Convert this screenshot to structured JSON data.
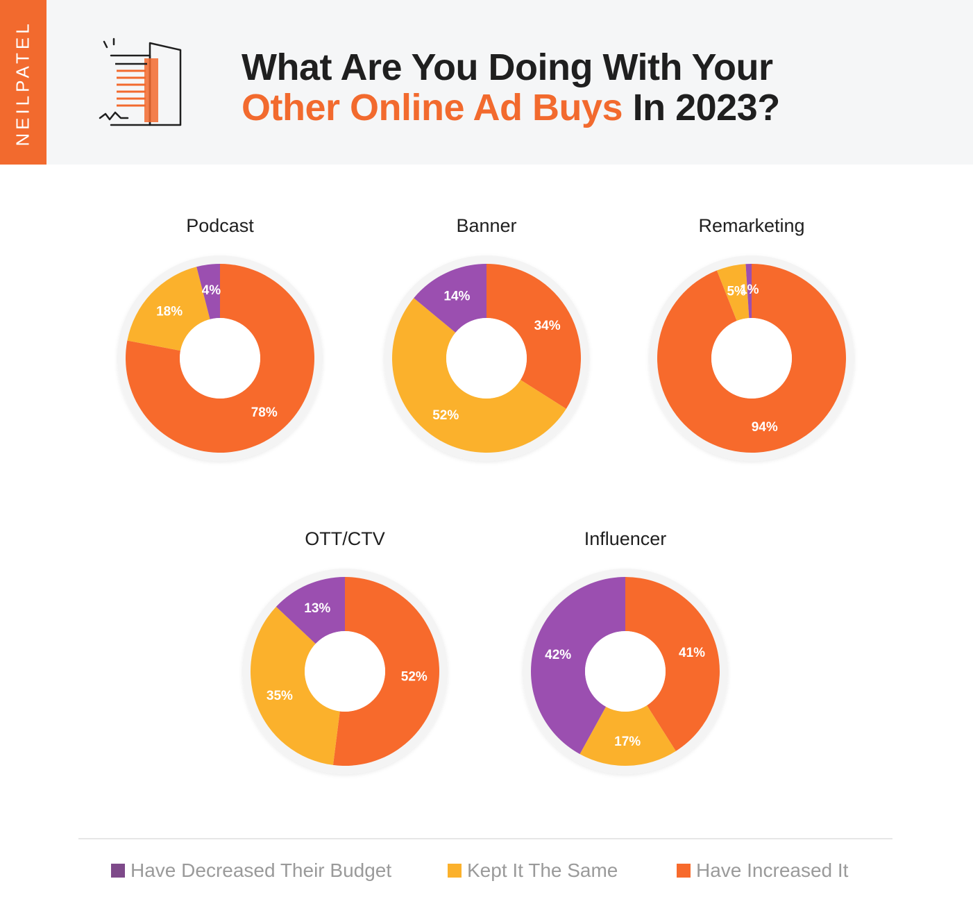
{
  "brand": "NEILPATEL",
  "title": {
    "line1": "What Are You Doing With Your",
    "line2_accent": "Other Online Ad Buys",
    "line2_rest": "In 2023?"
  },
  "colors": {
    "decreased": "#9b4fb0",
    "same": "#fbb12c",
    "increased": "#f76a2c",
    "brand": "#f26a2e"
  },
  "legend": [
    {
      "key": "decreased",
      "label": "Have Decreased Their Budget"
    },
    {
      "key": "same",
      "label": "Kept It The Same"
    },
    {
      "key": "increased",
      "label": "Have Increased It"
    }
  ],
  "chart_data": [
    {
      "type": "pie",
      "title": "Podcast",
      "categories": [
        "Have Increased It",
        "Kept It The Same",
        "Have Decreased Their Budget"
      ],
      "values": [
        78,
        18,
        4
      ],
      "labels": [
        "78%",
        "18%",
        "4%"
      ]
    },
    {
      "type": "pie",
      "title": "Banner",
      "categories": [
        "Have Increased It",
        "Kept It The Same",
        "Have Decreased Their Budget"
      ],
      "values": [
        34,
        52,
        14
      ],
      "labels": [
        "34%",
        "52%",
        "14%"
      ]
    },
    {
      "type": "pie",
      "title": "Remarketing",
      "categories": [
        "Have Increased It",
        "Kept It The Same",
        "Have Decreased Their Budget"
      ],
      "values": [
        94,
        5,
        1
      ],
      "labels": [
        "94%",
        "5%",
        "1%"
      ]
    },
    {
      "type": "pie",
      "title": "OTT/CTV",
      "categories": [
        "Have Increased It",
        "Kept It The Same",
        "Have Decreased Their Budget"
      ],
      "values": [
        52,
        35,
        13
      ],
      "labels": [
        "52%",
        "35%",
        "13%"
      ]
    },
    {
      "type": "pie",
      "title": "Influencer",
      "categories": [
        "Have Increased It",
        "Kept It The Same",
        "Have Decreased Their Budget"
      ],
      "values": [
        41,
        17,
        42
      ],
      "labels": [
        "41%",
        "17%",
        "42%"
      ]
    }
  ]
}
